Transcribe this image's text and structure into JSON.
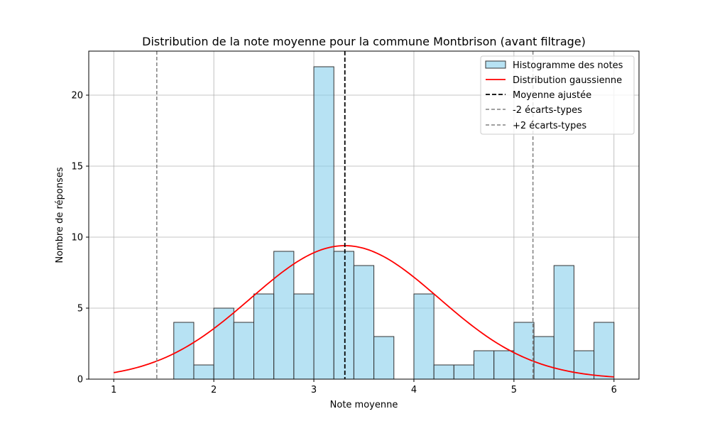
{
  "chart_data": {
    "type": "bar",
    "title": "Distribution de la note moyenne pour la commune Montbrison (avant filtrage)",
    "xlabel": "Note moyenne",
    "ylabel": "Nombre de réponses",
    "xlim": [
      0.75,
      6.25
    ],
    "ylim": [
      0,
      23.1
    ],
    "xticks": [
      "1",
      "2",
      "3",
      "4",
      "5",
      "6"
    ],
    "yticks": [
      "0",
      "5",
      "10",
      "15",
      "20"
    ],
    "grid": true,
    "legend_position": "top-right",
    "histogram": {
      "name": "Histogramme des notes",
      "color": "#87ceeb",
      "edge_color": "#333333",
      "bin_start": 1.6,
      "bin_width": 0.2,
      "counts": [
        4,
        1,
        5,
        4,
        6,
        9,
        6,
        22,
        9,
        8,
        3,
        0,
        6,
        1,
        1,
        2,
        2,
        4,
        3,
        8,
        2,
        4
      ]
    },
    "gaussian": {
      "name": "Distribution gaussienne",
      "color": "#ff0000",
      "mean": 3.31,
      "std": 0.94,
      "peak": 9.4,
      "x_range": [
        1,
        6
      ]
    },
    "mean_line": {
      "name": "Moyenne ajustée",
      "x": 3.31,
      "color": "#000000"
    },
    "minus_2sd_line": {
      "name": "-2 écarts-types",
      "x": 1.43,
      "color": "#808080"
    },
    "plus_2sd_line": {
      "name": "+2 écarts-types",
      "x": 5.19,
      "color": "#808080"
    }
  }
}
